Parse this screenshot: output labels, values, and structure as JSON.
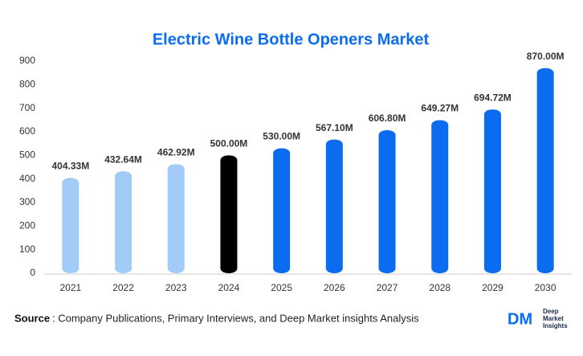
{
  "chart_data": {
    "type": "bar",
    "title": "Electric Wine Bottle Openers Market",
    "categories": [
      "2021",
      "2022",
      "2023",
      "2024",
      "2025",
      "2026",
      "2027",
      "2028",
      "2029",
      "2030"
    ],
    "values": [
      404.33,
      432.64,
      462.92,
      500.0,
      530.0,
      567.1,
      606.8,
      649.27,
      694.72,
      870.0
    ],
    "value_labels": [
      "404.33M",
      "432.64M",
      "462.92M",
      "500.00M",
      "530.00M",
      "567.10M",
      "606.80M",
      "649.27M",
      "694.72M",
      "870.00M"
    ],
    "colors": [
      "#a3cbf8",
      "#a3cbf8",
      "#a3cbf8",
      "#000000",
      "#0b6cf0",
      "#0b6cf0",
      "#0b6cf0",
      "#0b6cf0",
      "#0b6cf0",
      "#0b6cf0"
    ],
    "ylim": [
      0,
      900
    ],
    "yticks": [
      0,
      100,
      200,
      300,
      400,
      500,
      600,
      700,
      800,
      900
    ],
    "grid": false
  },
  "footer": {
    "source_label": "Source",
    "source_text": ": Company Publications, Primary Interviews, and Deep Market insights Analysis"
  },
  "logo": {
    "mark": "DM",
    "line1": "Deep",
    "line2": "Market",
    "line3": "Insights"
  }
}
